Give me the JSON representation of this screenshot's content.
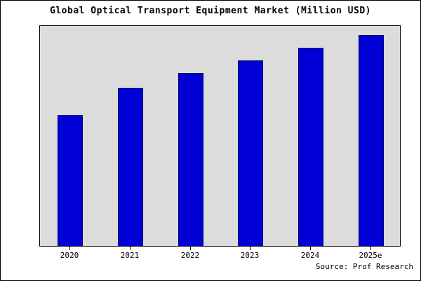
{
  "title": "Global Optical Transport Equipment Market (Million USD)",
  "source": "Source: Prof Research",
  "colors": {
    "bar_fill": "#0000d6",
    "bar_edge": "#000060",
    "plot_background": "#dcdcdc",
    "frame": "#000000"
  },
  "chart_data": {
    "type": "bar",
    "title": "Global Optical Transport Equipment Market (Million USD)",
    "categories": [
      "2020",
      "2021",
      "2022",
      "2023",
      "2024",
      "2025e"
    ],
    "values": [
      62,
      75,
      82,
      88,
      94,
      100
    ],
    "xlabel": "",
    "ylabel": "",
    "ylim": [
      0,
      105
    ],
    "grid": false,
    "legend": false,
    "annotation": "Source: Prof Research"
  }
}
